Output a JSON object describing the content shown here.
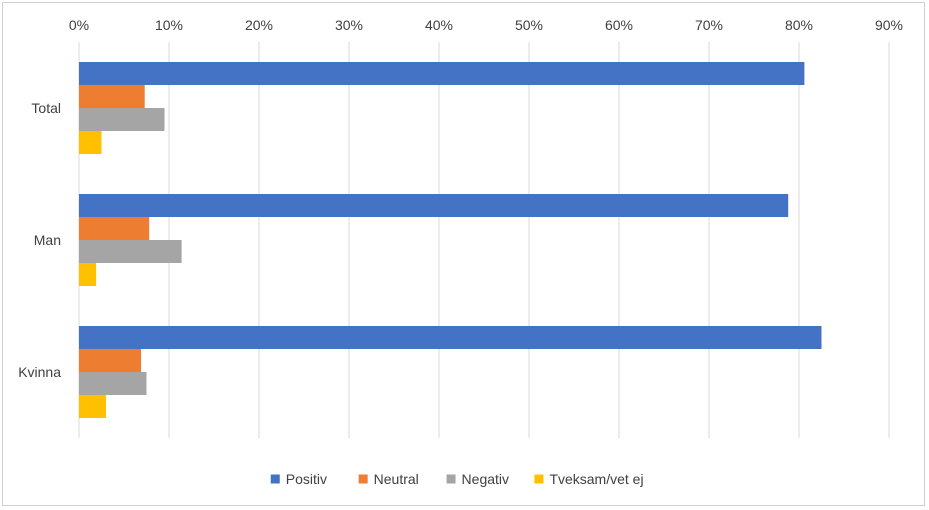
{
  "chart_data": {
    "type": "bar",
    "orientation": "horizontal",
    "categories": [
      "Total",
      "Man",
      "Kvinna"
    ],
    "series": [
      {
        "name": "Positiv",
        "color": "#4472C4",
        "values": [
          0.806,
          0.788,
          0.825
        ]
      },
      {
        "name": "Neutral",
        "color": "#ED7D31",
        "values": [
          0.073,
          0.078,
          0.069
        ]
      },
      {
        "name": "Negativ",
        "color": "#A5A5A5",
        "values": [
          0.095,
          0.114,
          0.075
        ]
      },
      {
        "name": "Tveksam/vet ej",
        "color": "#FFC000",
        "values": [
          0.025,
          0.019,
          0.03
        ]
      }
    ],
    "xlim": [
      0,
      0.9
    ],
    "x_ticks": [
      "0%",
      "10%",
      "20%",
      "30%",
      "40%",
      "50%",
      "60%",
      "70%",
      "80%",
      "90%"
    ],
    "x_axis_position": "top",
    "grid": true,
    "legend_position": "bottom",
    "title": "",
    "xlabel": "",
    "ylabel": ""
  }
}
